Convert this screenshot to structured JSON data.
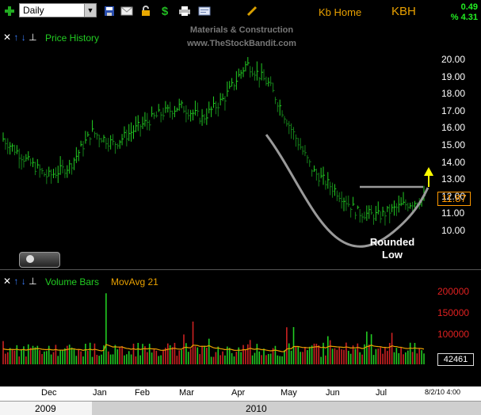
{
  "toolbar": {
    "timeframe": "Daily",
    "company": "Kb Home",
    "ticker": "KBH",
    "change_abs": "0.49",
    "change_pct": "% 4.31",
    "icons": [
      "add-icon",
      "save-icon",
      "email-icon",
      "lock-icon",
      "dollar-icon",
      "print-icon",
      "card-icon",
      "pencil-icon"
    ]
  },
  "watermark": {
    "line1": "Materials & Construction",
    "line2": "www.TheStockBandit.com"
  },
  "price_panel": {
    "legend": "Price History",
    "current_price": "11.87",
    "annotation": "Rounded\nLow",
    "axis_ticks": [
      "20.00",
      "19.00",
      "18.00",
      "17.00",
      "16.00",
      "15.00",
      "14.00",
      "13.00",
      "12.00",
      "11.00",
      "10.00"
    ],
    "colors": {
      "up": "#22cc22",
      "pattern": "#9a9a9a",
      "arrow": "#ffff00",
      "price_box": "#ff9900"
    }
  },
  "volume_panel": {
    "legend_left": "Volume Bars",
    "legend_right": "MovAvg 21",
    "current_volume": "42461",
    "axis_ticks": [
      "200000",
      "150000",
      "100000"
    ]
  },
  "time_axis": {
    "months": [
      "Dec",
      "Jan",
      "Feb",
      "Mar",
      "Apr",
      "May",
      "Jun",
      "Jul"
    ],
    "stamp": "8/2/10 4:00",
    "years": [
      "2009",
      "2010"
    ]
  },
  "chart_data": {
    "type": "ohlc",
    "x": [
      "2009-11-23",
      "2009-12-07",
      "2009-12-21",
      "2010-01-04",
      "2010-01-18",
      "2010-02-01",
      "2010-02-15",
      "2010-03-01",
      "2010-03-15",
      "2010-03-29",
      "2010-04-12",
      "2010-04-23",
      "2010-05-03",
      "2010-05-17",
      "2010-05-31",
      "2010-06-14",
      "2010-06-28",
      "2010-07-12",
      "2010-07-26",
      "2010-08-02"
    ],
    "close": [
      15.4,
      14.2,
      13.2,
      13.8,
      15.8,
      15.1,
      16.0,
      16.8,
      17.3,
      16.6,
      17.8,
      19.8,
      18.6,
      16.0,
      13.5,
      12.4,
      11.1,
      10.9,
      11.5,
      11.87
    ],
    "ylim": [
      10,
      20
    ],
    "volume_ylim": [
      0,
      200000
    ]
  }
}
